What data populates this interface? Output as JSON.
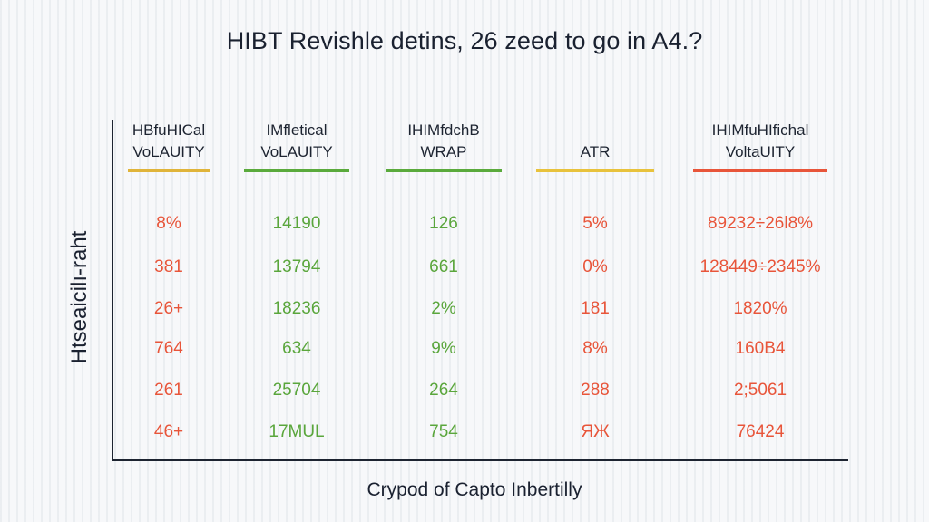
{
  "chart_data": {
    "type": "table",
    "title": "HIBT Revishle detins, 26 zeed to go in A4.?",
    "xlabel": "Crypod of Capto Inbertilly",
    "ylabel": "Htseaicilı-raht",
    "columns": [
      {
        "header": [
          "HBfuHICal",
          "VoLAUITY"
        ],
        "color": "#e0b43a",
        "value_color": "#e8553a",
        "values": [
          "8%",
          "381",
          "26+",
          "764",
          "261",
          "46+"
        ]
      },
      {
        "header": [
          "IMfletical",
          "VoLAUITY"
        ],
        "color": "#5aaa3c",
        "value_color": "#5aa63c",
        "values": [
          "14190",
          "13794",
          "18236",
          "634",
          "25704",
          "17MUL"
        ]
      },
      {
        "header": [
          "IHIMfdchB",
          "WRAP"
        ],
        "color": "#5aaa3c",
        "value_color": "#5aa63c",
        "values": [
          "126",
          "661",
          "2%",
          "9%",
          "264",
          "754"
        ]
      },
      {
        "header": [
          "",
          "ATR"
        ],
        "color": "#e8c23c",
        "value_color": "#e8553a",
        "values": [
          "5%",
          "0%",
          "181",
          "8%",
          "288",
          "ЯЖ"
        ]
      },
      {
        "header": [
          "IHIMfuHIfichal",
          "VoltaUITY"
        ],
        "color": "#e8553a",
        "value_color": "#e8553a",
        "values": [
          "89232÷26l8%",
          "128449÷2345%",
          "1820%",
          "160B4",
          "2;5061",
          "76424"
        ]
      }
    ]
  }
}
